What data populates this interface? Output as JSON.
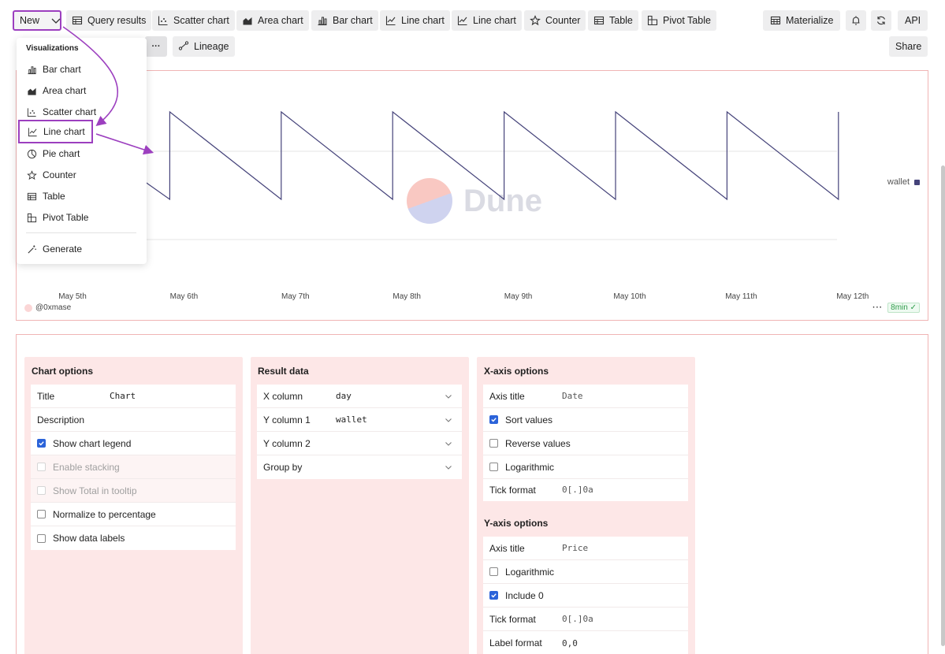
{
  "toolbar": {
    "new_label": "New",
    "buttons": [
      {
        "label": "Query results",
        "icon": "table-icon"
      },
      {
        "label": "Scatter chart",
        "icon": "scatter-chart-icon"
      },
      {
        "label": "Area chart",
        "icon": "area-chart-icon"
      },
      {
        "label": "Bar chart",
        "icon": "bar-chart-icon"
      },
      {
        "label": "Line chart",
        "icon": "line-chart-icon"
      },
      {
        "label": "Line chart",
        "icon": "line-chart-icon"
      },
      {
        "label": "Counter",
        "icon": "star-icon"
      },
      {
        "label": "Table",
        "icon": "table-icon"
      },
      {
        "label": "Pivot Table",
        "icon": "pivot-table-icon"
      }
    ],
    "materialize_label": "Materialize",
    "api_label": "API",
    "share_label": "Share",
    "lineage_label": "Lineage",
    "more_label": "···"
  },
  "dropdown": {
    "heading": "Visualizations",
    "items": [
      {
        "label": "Bar chart",
        "icon": "bar-chart-icon"
      },
      {
        "label": "Area chart",
        "icon": "area-chart-icon"
      },
      {
        "label": "Scatter chart",
        "icon": "scatter-chart-icon"
      },
      {
        "label": "Line chart",
        "icon": "line-chart-icon",
        "highlighted": true
      },
      {
        "label": "Pie chart",
        "icon": "pie-chart-icon"
      },
      {
        "label": "Counter",
        "icon": "star-icon"
      },
      {
        "label": "Table",
        "icon": "table-icon"
      },
      {
        "label": "Pivot Table",
        "icon": "pivot-table-icon"
      }
    ],
    "generate_label": "Generate"
  },
  "chart": {
    "watermark": "Dune",
    "author": "@0xmase",
    "updated": "8min",
    "more": "···",
    "legend_label": "wallet",
    "line_color": "#45437a",
    "annotation_color": "#9c3fbf"
  },
  "chart_data": {
    "type": "line",
    "x_labels": [
      "May 5th",
      "May 6th",
      "May 7th",
      "May 8th",
      "May 9th",
      "May 10th",
      "May 11th",
      "May 12th"
    ],
    "series": [
      {
        "name": "wallet",
        "x": [
          0,
          1,
          1,
          2,
          2,
          3,
          3,
          4,
          4,
          5,
          5,
          6,
          6,
          7,
          7
        ],
        "y": [
          0.9,
          0,
          1,
          0,
          1,
          0,
          1,
          0,
          1,
          0,
          1,
          0,
          1,
          0,
          1
        ]
      }
    ],
    "grid": true,
    "legend_position": "right"
  },
  "settings": {
    "chart_options": {
      "title": "Chart options",
      "title_label": "Title",
      "title_value": "Chart",
      "description_label": "Description",
      "show_legend": "Show chart legend",
      "enable_stacking": "Enable stacking",
      "show_total": "Show Total in tooltip",
      "normalize": "Normalize to percentage",
      "show_labels": "Show data labels"
    },
    "result_data": {
      "title": "Result data",
      "x_column_label": "X column",
      "x_column_value": "day",
      "y1_label": "Y column 1",
      "y1_value": "wallet",
      "y2_label": "Y column 2",
      "group_by_label": "Group by"
    },
    "x_axis": {
      "title": "X-axis options",
      "axis_title_label": "Axis title",
      "axis_title_value": "Date",
      "sort_values": "Sort values",
      "reverse_values": "Reverse values",
      "logarithmic": "Logarithmic",
      "tick_format_label": "Tick format",
      "tick_format_value": "0[.]0a"
    },
    "y_axis": {
      "title": "Y-axis options",
      "axis_title_label": "Axis title",
      "axis_title_value": "Price",
      "logarithmic": "Logarithmic",
      "include_zero": "Include 0",
      "tick_format_label": "Tick format",
      "tick_format_value": "0[.]0a",
      "label_format_label": "Label format",
      "label_format_value": "0,0"
    }
  }
}
